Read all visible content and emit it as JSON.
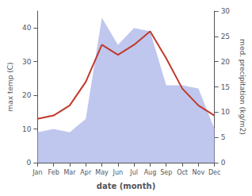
{
  "chart_data": {
    "type": "line",
    "categories": [
      "Jan",
      "Feb",
      "Mar",
      "Apr",
      "May",
      "Jun",
      "Jul",
      "Aug",
      "Sep",
      "Oct",
      "Nov",
      "Dec"
    ],
    "series": [
      {
        "type": "area",
        "color": "#aab4e8",
        "values": [
          9,
          10,
          9,
          13,
          43,
          35,
          40,
          39,
          23,
          23,
          22,
          10
        ]
      },
      {
        "type": "line",
        "color": "#c0392b",
        "values": [
          13,
          14,
          17,
          24,
          35,
          32,
          35,
          39,
          31,
          22,
          17,
          14
        ]
      }
    ],
    "xlabel": "date (month)",
    "ylabel": "max temp (C)",
    "y2label": "med. precipitation (kg/m2)",
    "ylim": [
      0,
      45
    ],
    "yticks": [
      0,
      10,
      20,
      30,
      40
    ],
    "y2lim": [
      0,
      30
    ],
    "y2ticks": [
      0,
      5,
      10,
      15,
      20,
      25,
      30
    ],
    "grid": false
  }
}
